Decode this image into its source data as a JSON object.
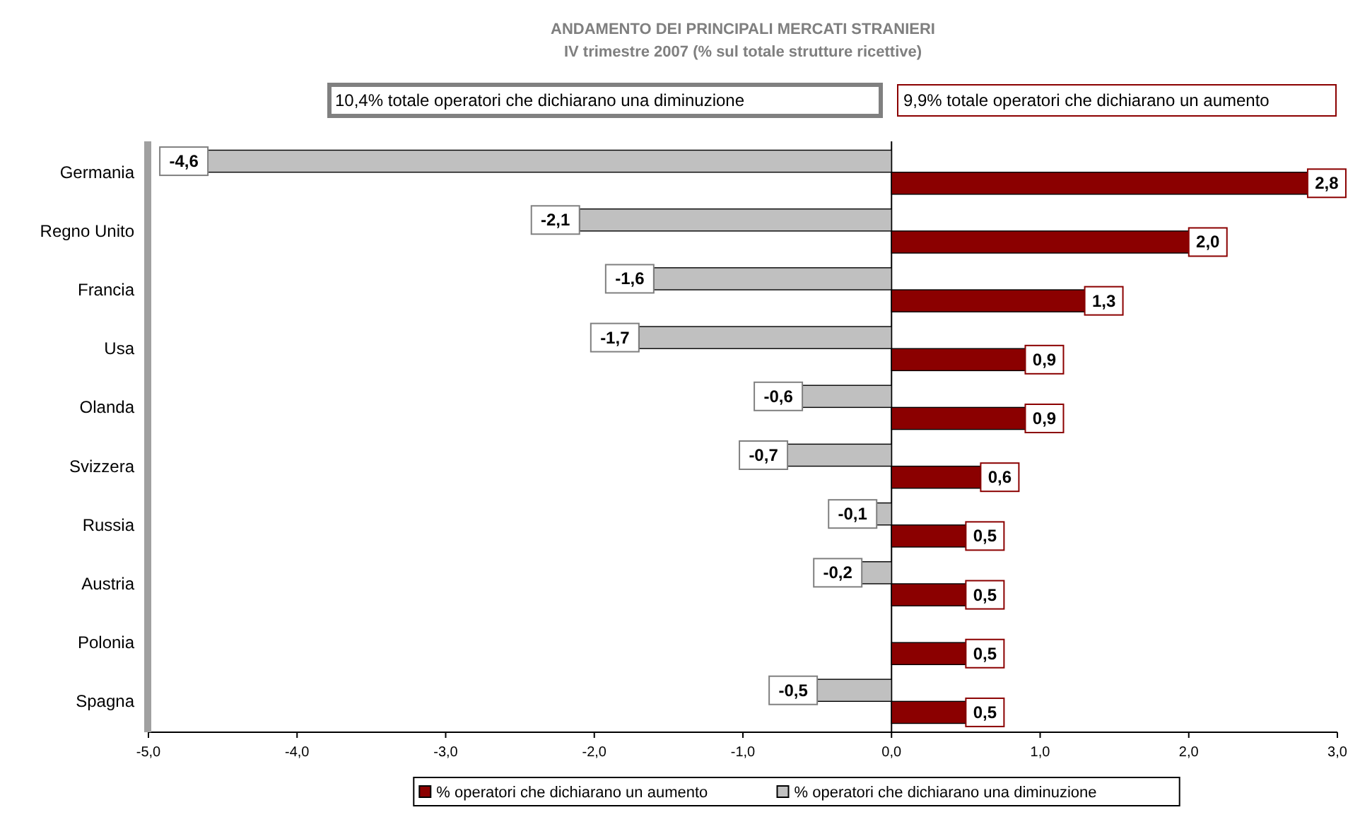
{
  "chart_data": {
    "type": "bar",
    "orientation": "horizontal",
    "title": "ANDAMENTO DEI PRINCIPALI MERCATI STRANIERI",
    "subtitle": "IV trimestre 2007  (% sul totale strutture ricettive)",
    "categories": [
      "Germania",
      "Regno Unito",
      "Francia",
      "Usa",
      "Olanda",
      "Svizzera",
      "Russia",
      "Austria",
      "Polonia",
      "Spagna"
    ],
    "series": [
      {
        "name": "% operatori che dichiarano un aumento",
        "color": "#8b0000",
        "values": [
          2.8,
          2.0,
          1.3,
          0.9,
          0.9,
          0.6,
          0.5,
          0.5,
          0.5,
          0.5
        ],
        "value_labels": [
          "2,8",
          "2,0",
          "1,3",
          "0,9",
          "0,9",
          "0,6",
          "0,5",
          "0,5",
          "0,5",
          "0,5"
        ]
      },
      {
        "name": "% operatori che dichiarano una diminuzione",
        "color": "#c0c0c0",
        "values": [
          -4.6,
          -2.1,
          -1.6,
          -1.7,
          -0.6,
          -0.7,
          -0.1,
          -0.2,
          null,
          -0.5
        ],
        "value_labels": [
          "-4,6",
          "-2,1",
          "-1,6",
          "-1,7",
          "-0,6",
          "-0,7",
          "-0,1",
          "-0,2",
          null,
          "-0,5"
        ]
      }
    ],
    "xlim": [
      -5,
      3
    ],
    "xticks": [
      {
        "value": -5,
        "label": "-5,0"
      },
      {
        "value": -4,
        "label": "-4,0"
      },
      {
        "value": -3,
        "label": "-3,0"
      },
      {
        "value": -2,
        "label": "-2,0"
      },
      {
        "value": -1,
        "label": "-1,0"
      },
      {
        "value": 0,
        "label": "0,0"
      },
      {
        "value": 1,
        "label": "1,0"
      },
      {
        "value": 2,
        "label": "2,0"
      },
      {
        "value": 3,
        "label": "3,0"
      }
    ],
    "annotations": [
      "10,4%  totale operatori che dichiarano una diminuzione",
      "9,9%  totale operatori che dichiarano un aumento"
    ],
    "legend": "bottom"
  }
}
